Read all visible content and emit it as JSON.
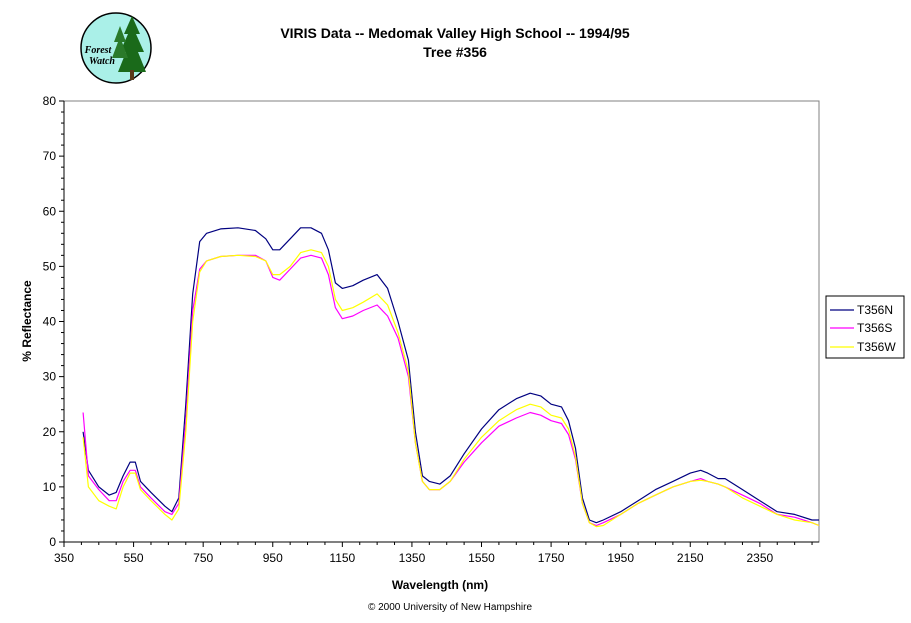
{
  "logo": {
    "text_line1": "Forest",
    "text_line2": "Watch"
  },
  "copyright": "© 2000 University of New Hampshire",
  "colors": {
    "T356N": "#000080",
    "T356S": "#ff00ff",
    "T356W": "#ffff00"
  },
  "chart_data": {
    "type": "line",
    "title": "VIRIS Data -- Medomak Valley High School -- 1994/95",
    "subtitle": "Tree #356",
    "xlabel": "Wavelength (nm)",
    "ylabel": "% Reflectance",
    "xlim": [
      350,
      2520
    ],
    "ylim": [
      0,
      80
    ],
    "xticks": [
      "350",
      "550",
      "750",
      "950",
      "1150",
      "1350",
      "1550",
      "1750",
      "1950",
      "2150",
      "2350"
    ],
    "yticks": [
      "0",
      "10",
      "20",
      "30",
      "40",
      "50",
      "60",
      "70",
      "80"
    ],
    "grid": false,
    "legend_position": "right",
    "series": [
      {
        "name": "T356N",
        "x": [
          405,
          420,
          450,
          480,
          500,
          520,
          540,
          555,
          570,
          600,
          640,
          660,
          680,
          700,
          720,
          740,
          760,
          800,
          850,
          900,
          930,
          950,
          970,
          1000,
          1030,
          1060,
          1090,
          1110,
          1130,
          1150,
          1180,
          1210,
          1250,
          1280,
          1310,
          1340,
          1360,
          1380,
          1400,
          1430,
          1460,
          1500,
          1550,
          1600,
          1650,
          1690,
          1720,
          1750,
          1780,
          1800,
          1820,
          1840,
          1860,
          1880,
          1900,
          1950,
          2000,
          2050,
          2100,
          2150,
          2180,
          2200,
          2230,
          2250,
          2300,
          2350,
          2400,
          2450,
          2500,
          2520
        ],
        "values": [
          20,
          13,
          10,
          8.5,
          9,
          12,
          14.5,
          14.5,
          11,
          9,
          6.5,
          5.5,
          8,
          25,
          45,
          54.5,
          56,
          56.8,
          57,
          56.5,
          55,
          53,
          53,
          55,
          57,
          57,
          56,
          53,
          47,
          46,
          46.5,
          47.5,
          48.5,
          46,
          40,
          33,
          20,
          12,
          11,
          10.5,
          12,
          16,
          20.5,
          24,
          26,
          27,
          26.5,
          25,
          24.5,
          22,
          17,
          8,
          4,
          3.5,
          4,
          5.5,
          7.5,
          9.5,
          11,
          12.5,
          13,
          12.5,
          11.5,
          11.5,
          9.5,
          7.5,
          5.5,
          5,
          4,
          4
        ]
      },
      {
        "name": "T356S",
        "x": [
          405,
          420,
          450,
          480,
          500,
          520,
          540,
          555,
          570,
          600,
          640,
          660,
          680,
          700,
          720,
          740,
          760,
          800,
          850,
          900,
          930,
          950,
          970,
          1000,
          1030,
          1060,
          1090,
          1110,
          1130,
          1150,
          1180,
          1210,
          1250,
          1280,
          1310,
          1340,
          1360,
          1380,
          1400,
          1430,
          1460,
          1500,
          1550,
          1600,
          1650,
          1690,
          1720,
          1750,
          1780,
          1800,
          1820,
          1840,
          1860,
          1880,
          1900,
          1950,
          2000,
          2050,
          2100,
          2150,
          2180,
          2200,
          2230,
          2250,
          2300,
          2350,
          2400,
          2450,
          2500,
          2520
        ],
        "values": [
          23.5,
          12,
          9.5,
          7.5,
          7.5,
          11,
          13,
          13,
          10,
          8,
          5.5,
          5,
          7,
          22,
          42,
          49.5,
          51,
          51.8,
          52,
          52,
          51,
          48,
          47.5,
          49.5,
          51.5,
          52,
          51.5,
          48.5,
          42.5,
          40.5,
          41,
          42,
          43,
          41,
          37,
          30,
          18,
          11,
          9.5,
          9.5,
          11,
          14.5,
          18,
          21,
          22.5,
          23.5,
          23,
          22,
          21.5,
          19.5,
          15,
          7,
          3.5,
          3,
          3.5,
          5,
          7,
          8.5,
          10,
          11,
          11.5,
          11,
          10.5,
          10,
          8.5,
          7,
          5,
          4.5,
          3.5,
          3
        ]
      },
      {
        "name": "T356W",
        "x": [
          405,
          420,
          450,
          480,
          500,
          520,
          540,
          555,
          570,
          600,
          640,
          660,
          680,
          700,
          720,
          740,
          760,
          800,
          850,
          900,
          930,
          950,
          970,
          1000,
          1030,
          1060,
          1090,
          1110,
          1130,
          1150,
          1180,
          1210,
          1250,
          1280,
          1310,
          1340,
          1360,
          1380,
          1400,
          1430,
          1460,
          1500,
          1550,
          1600,
          1650,
          1690,
          1720,
          1750,
          1780,
          1800,
          1820,
          1840,
          1860,
          1880,
          1900,
          1950,
          2000,
          2050,
          2100,
          2150,
          2180,
          2200,
          2230,
          2250,
          2300,
          2350,
          2400,
          2450,
          2500,
          2520
        ],
        "values": [
          19,
          10,
          7.5,
          6.5,
          6,
          10,
          12.5,
          12.5,
          9.5,
          7.5,
          5,
          4,
          6,
          20,
          40,
          49,
          51,
          51.8,
          52,
          51.8,
          51,
          48.5,
          48.5,
          50,
          52.5,
          53,
          52.5,
          50,
          44,
          42,
          42.5,
          43.5,
          45,
          43,
          38,
          31,
          18,
          11,
          9.5,
          9.5,
          11,
          15,
          19,
          22,
          24,
          25,
          24.5,
          23,
          22.5,
          20.5,
          15.5,
          7,
          3.5,
          2.8,
          3,
          5,
          7,
          8.5,
          10,
          11,
          11.2,
          11,
          10.5,
          10,
          8,
          6.5,
          5,
          4,
          3.5,
          3
        ]
      }
    ]
  }
}
